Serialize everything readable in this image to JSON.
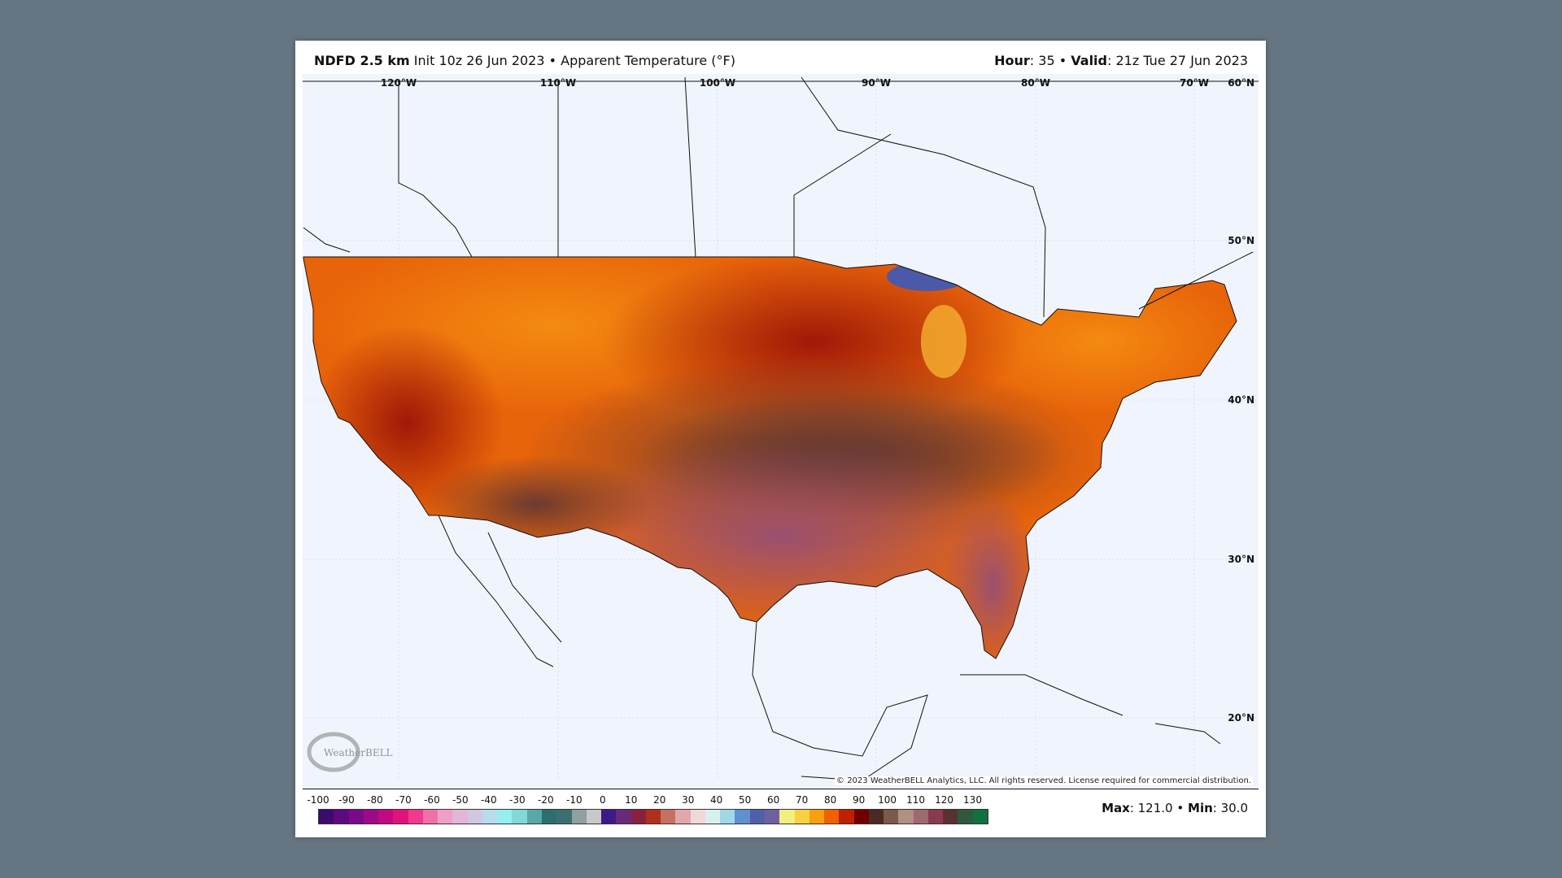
{
  "header": {
    "model": "NDFD 2.5 km",
    "init": "Init 10z 26 Jun 2023",
    "separator": "•",
    "product": "Apparent Temperature (°F)",
    "hour_label": "Hour",
    "hour": "35",
    "valid_label": "Valid",
    "valid": "21z Tue 27 Jun 2023"
  },
  "grid": {
    "lon_labels": [
      "120°W",
      "110°W",
      "100°W",
      "90°W",
      "80°W",
      "70°W"
    ],
    "lat_labels": [
      "60°N",
      "50°N",
      "40°N",
      "30°N",
      "20°N"
    ]
  },
  "logo": "WeatherBELL",
  "copyright": "© 2023 WeatherBELL Analytics, LLC. All rights reserved. License required for commercial distribution.",
  "colorbar": {
    "ticks": [
      "-100",
      "-90",
      "-80",
      "-70",
      "-60",
      "-50",
      "-40",
      "-30",
      "-20",
      "-10",
      "0",
      "10",
      "20",
      "30",
      "40",
      "50",
      "60",
      "70",
      "80",
      "90",
      "100",
      "110",
      "120",
      "130"
    ],
    "colors": [
      "#3d0a6e",
      "#5c0a80",
      "#7a0a88",
      "#9c0a88",
      "#c00a80",
      "#e0137a",
      "#f03a90",
      "#f070a8",
      "#eea0c4",
      "#e2b6d8",
      "#cfc8e0",
      "#b8dcec",
      "#96eef0",
      "#80d8d8",
      "#58a8a8",
      "#2e6e6e",
      "#3c7070",
      "#8ea0a0",
      "#c8c8c8",
      "#3c1a8a",
      "#6a2a7a",
      "#8a2040",
      "#b03020",
      "#c87060",
      "#e0a8a8",
      "#f0d8d8",
      "#d8f0f0",
      "#a0d8e8",
      "#6090d0",
      "#5060a8",
      "#7060a0",
      "#f0f080",
      "#f8d040",
      "#f8a010",
      "#f06000",
      "#c02000",
      "#700000",
      "#4a2a22",
      "#7a5a48",
      "#b09080",
      "#a06870",
      "#8a3a50",
      "#5a3030",
      "#305840",
      "#107040"
    ]
  },
  "stats": {
    "max_label": "Max",
    "max": "121.0",
    "min_label": "Min",
    "min": "30.0"
  },
  "colors": {
    "background": "#657682",
    "ocean": "#f0f4fc",
    "hot": "#e85a00",
    "hottest": "#7a2010",
    "extreme": "#8a5060"
  }
}
